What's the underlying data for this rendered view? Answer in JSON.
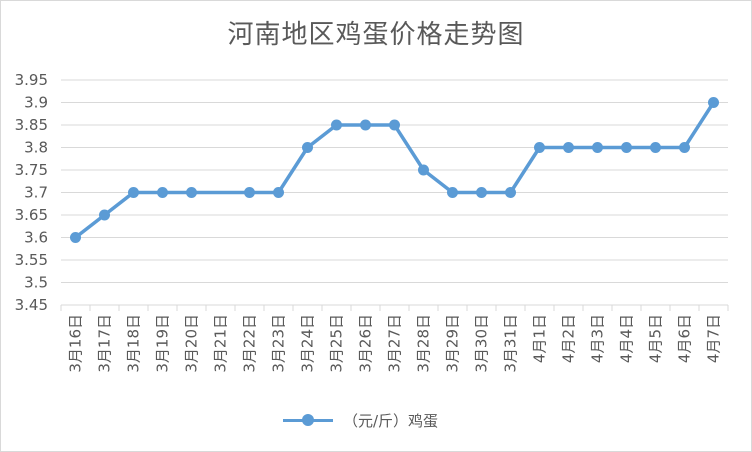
{
  "chart_data": {
    "type": "line",
    "title": "河南地区鸡蛋价格走势图",
    "xlabel": "",
    "ylabel": "",
    "categories": [
      "3月16日",
      "3月17日",
      "3月18日",
      "3月19日",
      "3月20日",
      "3月21日",
      "3月22日",
      "3月23日",
      "3月24日",
      "3月25日",
      "3月26日",
      "3月27日",
      "3月28日",
      "3月29日",
      "3月30日",
      "3月31日",
      "4月1日",
      "4月2日",
      "4月3日",
      "4月4日",
      "4月5日",
      "4月6日",
      "4月7日"
    ],
    "series": [
      {
        "name": "（元/斤）鸡蛋",
        "values": [
          3.6,
          3.65,
          3.7,
          3.7,
          3.7,
          null,
          3.7,
          3.7,
          3.8,
          3.85,
          3.85,
          3.85,
          3.75,
          3.7,
          3.7,
          3.7,
          3.8,
          3.8,
          3.8,
          3.8,
          3.8,
          3.8,
          3.9
        ],
        "color": "#5B9BD5"
      }
    ],
    "ylim": [
      3.45,
      3.95
    ],
    "yticks": [
      "3.45",
      "3.5",
      "3.55",
      "3.6",
      "3.65",
      "3.7",
      "3.75",
      "3.8",
      "3.85",
      "3.9",
      "3.95"
    ],
    "grid": true,
    "legend": "bottom"
  }
}
